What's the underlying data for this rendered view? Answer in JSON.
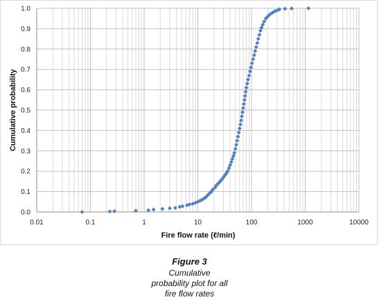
{
  "chart_data": {
    "type": "scatter",
    "title": "",
    "xlabel": "Fire flow rate (ℓ/min)",
    "ylabel": "Cumulative probability",
    "x_scale": "log",
    "xlim": [
      0.01,
      10000
    ],
    "ylim": [
      0,
      1
    ],
    "x_ticks": [
      "0.01",
      "0.1",
      "1",
      "10",
      "100",
      "1000",
      "10000"
    ],
    "y_ticks": [
      "0.0",
      "0.1",
      "0.2",
      "0.3",
      "0.4",
      "0.5",
      "0.6",
      "0.7",
      "0.8",
      "0.9",
      "1.0"
    ],
    "grid": true,
    "legend": "none",
    "marker_color": "#4F81BD",
    "series": [
      {
        "points": [
          [
            0.07,
            0.0
          ],
          [
            0.23,
            0.002
          ],
          [
            0.28,
            0.004
          ],
          [
            0.7,
            0.006
          ],
          [
            1.2,
            0.008
          ],
          [
            1.5,
            0.012
          ],
          [
            2.2,
            0.015
          ],
          [
            3.0,
            0.018
          ],
          [
            3.8,
            0.02
          ],
          [
            4.6,
            0.025
          ],
          [
            5.2,
            0.028
          ],
          [
            6.3,
            0.033
          ],
          [
            7.0,
            0.037
          ],
          [
            8.0,
            0.04
          ],
          [
            9.0,
            0.045
          ],
          [
            10,
            0.05
          ],
          [
            11,
            0.055
          ],
          [
            12,
            0.06
          ],
          [
            13,
            0.066
          ],
          [
            14,
            0.072
          ],
          [
            15,
            0.08
          ],
          [
            16,
            0.088
          ],
          [
            17,
            0.095
          ],
          [
            18,
            0.1
          ],
          [
            19,
            0.11
          ],
          [
            21,
            0.12
          ],
          [
            22,
            0.13
          ],
          [
            24,
            0.14
          ],
          [
            26,
            0.15
          ],
          [
            28,
            0.16
          ],
          [
            30,
            0.17
          ],
          [
            32,
            0.18
          ],
          [
            34,
            0.19
          ],
          [
            36,
            0.2
          ],
          [
            38,
            0.215
          ],
          [
            40,
            0.23
          ],
          [
            42,
            0.245
          ],
          [
            44,
            0.26
          ],
          [
            46,
            0.275
          ],
          [
            48,
            0.29
          ],
          [
            50,
            0.31
          ],
          [
            52,
            0.33
          ],
          [
            54,
            0.35
          ],
          [
            56,
            0.37
          ],
          [
            58,
            0.39
          ],
          [
            60,
            0.41
          ],
          [
            62,
            0.43
          ],
          [
            64,
            0.45
          ],
          [
            66,
            0.47
          ],
          [
            68,
            0.49
          ],
          [
            70,
            0.51
          ],
          [
            72,
            0.53
          ],
          [
            74,
            0.55
          ],
          [
            76,
            0.57
          ],
          [
            78,
            0.59
          ],
          [
            80,
            0.61
          ],
          [
            83,
            0.63
          ],
          [
            86,
            0.65
          ],
          [
            90,
            0.67
          ],
          [
            94,
            0.69
          ],
          [
            98,
            0.71
          ],
          [
            102,
            0.73
          ],
          [
            107,
            0.75
          ],
          [
            112,
            0.77
          ],
          [
            117,
            0.79
          ],
          [
            122,
            0.81
          ],
          [
            128,
            0.83
          ],
          [
            134,
            0.85
          ],
          [
            140,
            0.87
          ],
          [
            147,
            0.89
          ],
          [
            154,
            0.905
          ],
          [
            162,
            0.92
          ],
          [
            172,
            0.935
          ],
          [
            185,
            0.95
          ],
          [
            200,
            0.96
          ],
          [
            220,
            0.97
          ],
          [
            245,
            0.978
          ],
          [
            270,
            0.985
          ],
          [
            300,
            0.99
          ],
          [
            330,
            0.995
          ],
          [
            420,
            0.998
          ],
          [
            560,
            0.999
          ],
          [
            1150,
            1.0
          ]
        ]
      }
    ]
  },
  "figure": {
    "label": "Figure 3",
    "caption_lines": [
      "Cumulative",
      "probability plot for all",
      "fire flow rates"
    ]
  }
}
